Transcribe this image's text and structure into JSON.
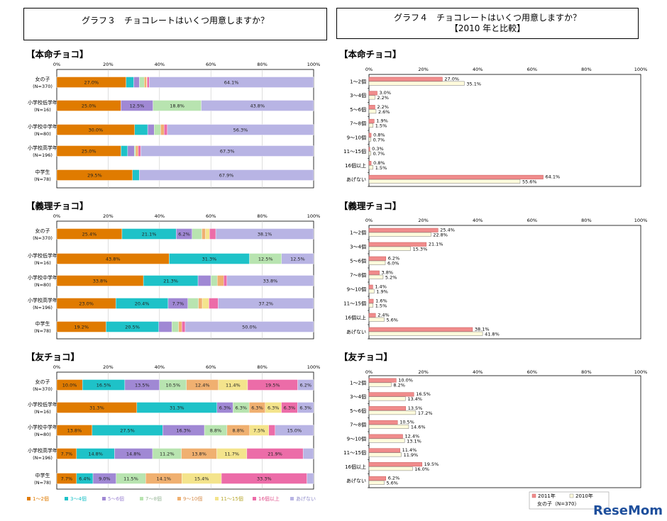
{
  "titles": {
    "g3": "グラフ３　チョコレートはいくつ用意しますか？",
    "g4_line1": "グラフ４　チョコレートはいくつ用意しますか？",
    "g4_line2": "【2010 年と比較】"
  },
  "axis_ticks": [
    "0%",
    "20%",
    "40%",
    "60%",
    "80%",
    "100%"
  ],
  "sections": {
    "honmei": "【本命チョコ】",
    "giri": "【義理チョコ】",
    "tomo": "【友チョコ】"
  },
  "categories": [
    "1～2個",
    "3～4個",
    "5～6個",
    "7～8個",
    "9～10個",
    "11～15個",
    "16個以上",
    "あげない"
  ],
  "colors": [
    "#e07b00",
    "#1ec2c8",
    "#a088d4",
    "#b8e4b0",
    "#f0b070",
    "#f4e48c",
    "#ec6ca8",
    "#b8b4e4"
  ],
  "legend_label_colors": [
    "#e07b00",
    "#1ec2c8",
    "#a088d4",
    "#9ab89a",
    "#d89050",
    "#b8a830",
    "#e0508c",
    "#8c88c8"
  ],
  "legend4": {
    "s2011": "2011年",
    "s2010": "2010年",
    "group": "女の子（N=370）"
  },
  "c2011": "#f08c8c",
  "c2010": "#fffbdc",
  "watermark": "ReseMom",
  "chart_data": [
    {
      "type": "stacked-bar-horizontal",
      "title": "グラフ３ 【本命チョコ】",
      "row_labels": [
        [
          "女の子",
          "(N=370)"
        ],
        [
          "小学校低学年",
          "(N=16)"
        ],
        [
          "小学校中学年",
          "(N=80)"
        ],
        [
          "小学校高学年",
          "(N=196)"
        ],
        [
          "中学生",
          "(N=78)"
        ]
      ],
      "series_names": [
        "1～2個",
        "3～4個",
        "5～6個",
        "7～8個",
        "9～10個",
        "11～15個",
        "16個以上",
        "あげない"
      ],
      "rows": [
        [
          27.0,
          3.0,
          2.2,
          1.9,
          0.8,
          0.3,
          0.8,
          64.1
        ],
        [
          25.0,
          0,
          12.5,
          18.8,
          0,
          0,
          0,
          43.8
        ],
        [
          30.0,
          5.0,
          2.5,
          2.5,
          1.3,
          0,
          1.3,
          56.3
        ],
        [
          25.0,
          2.6,
          2.6,
          0.5,
          1.0,
          0,
          1.0,
          67.3
        ],
        [
          29.5,
          2.6,
          0,
          0,
          0,
          0,
          0,
          67.9
        ]
      ],
      "labels": [
        [
          "27.0%",
          "3.0%",
          "2.2%",
          "1.9%",
          "0.8%",
          "0.3%",
          "0.8%",
          "64.1%"
        ],
        [
          "25.0%",
          "",
          "12.5%",
          "18.8%",
          "",
          "",
          "",
          "43.8%"
        ],
        [
          "30.0%",
          "5.0%",
          "2.5%",
          "2.5%",
          "1.3%",
          "",
          "1.3%",
          "56.3%"
        ],
        [
          "25.0%",
          "2.6%",
          "2.6%",
          "0.5%",
          "1.0%",
          "",
          "1.0%",
          "67.3%"
        ],
        [
          "29.5%",
          "2.6%",
          "",
          "",
          "",
          "",
          "",
          "67.9%"
        ]
      ],
      "xlim": [
        0,
        100
      ]
    },
    {
      "type": "stacked-bar-horizontal",
      "title": "グラフ３ 【義理チョコ】",
      "row_labels": [
        [
          "女の子",
          "(N=370)"
        ],
        [
          "小学校低学年",
          "(N=16)"
        ],
        [
          "小学校中学年",
          "(N=80)"
        ],
        [
          "小学校高学年",
          "(N=196)"
        ],
        [
          "中学生",
          "(N=78)"
        ]
      ],
      "rows": [
        [
          25.4,
          21.1,
          6.2,
          3.8,
          1.4,
          1.6,
          2.4,
          38.1
        ],
        [
          43.8,
          31.3,
          0,
          12.5,
          0,
          0,
          0,
          12.5
        ],
        [
          33.8,
          21.3,
          5.0,
          2.5,
          2.5,
          0,
          1.3,
          33.8
        ],
        [
          23.0,
          20.4,
          7.7,
          4.1,
          1.5,
          2.6,
          3.6,
          37.2
        ],
        [
          19.2,
          20.5,
          5.1,
          2.6,
          1.3,
          0,
          1.3,
          50.0
        ]
      ],
      "labels": [
        [
          "25.4%",
          "21.1%",
          "6.2%",
          "3.8%",
          "1.4%",
          "1.6%",
          "2.4%",
          "38.1%"
        ],
        [
          "43.8%",
          "31.3%",
          "",
          "12.5%",
          "",
          "",
          "",
          "12.5%"
        ],
        [
          "33.8%",
          "21.3%",
          "5.0%",
          "2.5%",
          "2.5%",
          "",
          "1.3%",
          "33.8%"
        ],
        [
          "23.0%",
          "20.4%",
          "7.7%",
          "4.1%",
          "1.5%",
          "2.6%",
          "3.6%",
          "37.2%"
        ],
        [
          "19.2%",
          "20.5%",
          "5.1%",
          "2.6%",
          "1.3%",
          "",
          "1.3%",
          "50.0%"
        ]
      ],
      "xlim": [
        0,
        100
      ]
    },
    {
      "type": "stacked-bar-horizontal",
      "title": "グラフ３ 【友チョコ】",
      "row_labels": [
        [
          "女の子",
          "(N=370)"
        ],
        [
          "小学校低学年",
          "(N=16)"
        ],
        [
          "小学校中学年",
          "(N=80)"
        ],
        [
          "小学校高学年",
          "(N=196)"
        ],
        [
          "中学生",
          "(N=78)"
        ]
      ],
      "rows": [
        [
          10.0,
          16.5,
          13.5,
          10.5,
          12.4,
          11.4,
          19.5,
          6.2
        ],
        [
          31.3,
          31.3,
          6.3,
          6.3,
          6.3,
          6.3,
          6.3,
          6.3
        ],
        [
          13.8,
          27.5,
          16.3,
          8.8,
          8.8,
          7.5,
          2.5,
          15.0
        ],
        [
          7.7,
          14.8,
          14.8,
          11.2,
          13.8,
          11.7,
          21.9,
          4.1
        ],
        [
          7.7,
          6.4,
          9.0,
          11.5,
          14.1,
          15.4,
          33.3,
          2.6
        ]
      ],
      "labels": [
        [
          "10.0%",
          "16.5%",
          "13.5%",
          "10.5%",
          "12.4%",
          "11.4%",
          "19.5%",
          "6.2%"
        ],
        [
          "31.3%",
          "31.3%",
          "6.3%",
          "6.3%",
          "6.3%",
          "6.3%",
          "6.3%",
          "6.3%"
        ],
        [
          "13.8%",
          "27.5%",
          "16.3%",
          "8.8%",
          "8.8%",
          "7.5%",
          "2.5%",
          "15.0%"
        ],
        [
          "7.7%",
          "14.8%",
          "14.8%",
          "11.2%",
          "13.8%",
          "11.7%",
          "21.9%",
          "4.1%"
        ],
        [
          "7.7%",
          "6.4%",
          "9.0%",
          "11.5%",
          "14.1%",
          "15.4%",
          "33.3%",
          "2.6%"
        ]
      ],
      "xlim": [
        0,
        100
      ]
    },
    {
      "type": "bar-horizontal-grouped",
      "title": "グラフ４ 【本命チョコ】",
      "categories": [
        "1～2個",
        "3～4個",
        "5～6個",
        "7～8個",
        "9～10個",
        "11～15個",
        "16個以上",
        "あげない"
      ],
      "series": [
        {
          "name": "2011年",
          "values": [
            27.0,
            3.0,
            2.2,
            1.9,
            0.8,
            0.3,
            0.8,
            64.1
          ]
        },
        {
          "name": "2010年",
          "values": [
            35.1,
            2.2,
            2.6,
            1.5,
            0.7,
            0.7,
            1.5,
            55.6
          ]
        }
      ],
      "xlim": [
        0,
        100
      ]
    },
    {
      "type": "bar-horizontal-grouped",
      "title": "グラフ４ 【義理チョコ】",
      "categories": [
        "1～2個",
        "3～4個",
        "5～6個",
        "7～8個",
        "9～10個",
        "11～15個",
        "16個以上",
        "あげない"
      ],
      "series": [
        {
          "name": "2011年",
          "values": [
            25.4,
            21.1,
            6.2,
            3.8,
            1.4,
            1.6,
            2.4,
            38.1
          ]
        },
        {
          "name": "2010年",
          "values": [
            22.8,
            15.3,
            6.0,
            5.2,
            1.9,
            1.5,
            5.6,
            41.8
          ]
        }
      ],
      "xlim": [
        0,
        100
      ]
    },
    {
      "type": "bar-horizontal-grouped",
      "title": "グラフ４ 【友チョコ】",
      "categories": [
        "1～2個",
        "3～4個",
        "5～6個",
        "7～8個",
        "9～10個",
        "11～15個",
        "16個以上",
        "あげない"
      ],
      "series": [
        {
          "name": "2011年",
          "values": [
            10.0,
            16.5,
            13.5,
            10.5,
            12.4,
            11.4,
            19.5,
            6.2
          ]
        },
        {
          "name": "2010年",
          "values": [
            8.2,
            13.4,
            17.2,
            14.6,
            13.1,
            11.9,
            16.0,
            5.6
          ]
        }
      ],
      "xlim": [
        0,
        100
      ]
    }
  ]
}
